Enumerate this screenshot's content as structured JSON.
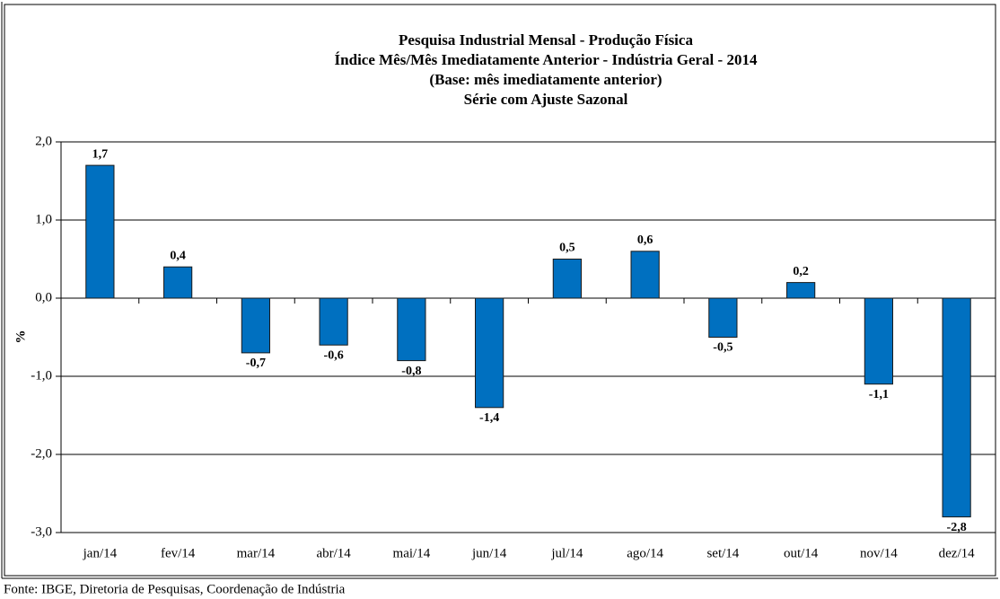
{
  "chart_data": {
    "type": "bar",
    "title_lines": [
      "Pesquisa Industrial Mensal - Produção Física",
      "Índice Mês/Mês Imediatamente Anterior - Indústria Geral - 2014",
      "(Base: mês imediatamente anterior)",
      "Série com Ajuste Sazonal"
    ],
    "y_label": "%",
    "categories": [
      "jan/14",
      "fev/14",
      "mar/14",
      "abr/14",
      "mai/14",
      "jun/14",
      "jul/14",
      "ago/14",
      "set/14",
      "out/14",
      "nov/14",
      "dez/14"
    ],
    "values": [
      1.7,
      0.4,
      -0.7,
      -0.6,
      -0.8,
      -1.4,
      0.5,
      0.6,
      -0.5,
      0.2,
      -1.1,
      -2.8
    ],
    "value_labels": [
      "1,7",
      "0,4",
      "-0,7",
      "-0,6",
      "-0,8",
      "-1,4",
      "0,5",
      "0,6",
      "-0,5",
      "0,2",
      "-1,1",
      "-2,8"
    ],
    "color": "#0070c0",
    "ylim": [
      -3,
      2
    ],
    "yticks": [
      {
        "value": -3,
        "label": "-3,0"
      },
      {
        "value": -2,
        "label": "-2,0"
      },
      {
        "value": -1,
        "label": "-1,0"
      },
      {
        "value": 0,
        "label": "0,0"
      },
      {
        "value": 1,
        "label": "1,0"
      },
      {
        "value": 2,
        "label": "2,0"
      }
    ],
    "grid": true,
    "source": "Fonte: IBGE, Diretoria de Pesquisas, Coordenação de Indústria"
  }
}
